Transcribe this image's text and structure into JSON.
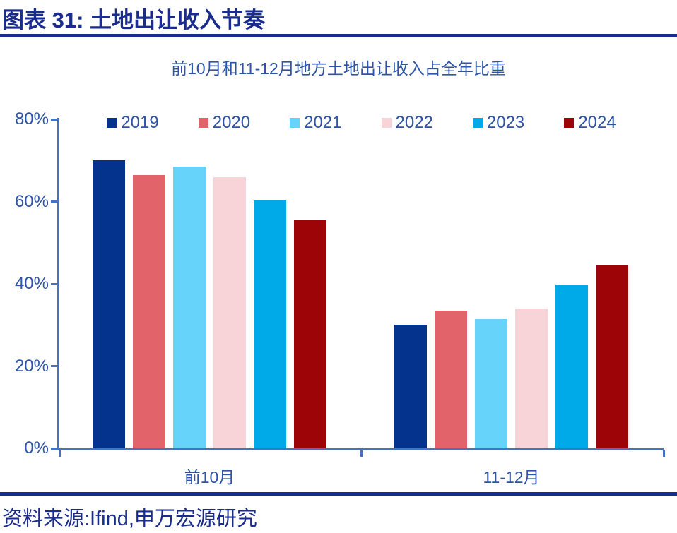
{
  "header": {
    "title": "图表 31:  土地出让收入节奏"
  },
  "footer": {
    "source": "资料来源:Ifind,申万宏源研究"
  },
  "colors": {
    "header_navy": "#1A2D8E",
    "axis_blue": "#4472C4",
    "label_blue": "#2E54A9"
  },
  "chart_data": {
    "type": "bar",
    "title": "前10月和11-12月地方土地出让收入占全年比重",
    "categories": [
      "前10月",
      "11-12月"
    ],
    "series": [
      {
        "name": "2019",
        "color": "#04338E",
        "values": [
          70.0,
          30.0
        ]
      },
      {
        "name": "2020",
        "color": "#E2636A",
        "values": [
          66.5,
          33.5
        ]
      },
      {
        "name": "2021",
        "color": "#66D3FA",
        "values": [
          68.5,
          31.5
        ]
      },
      {
        "name": "2022",
        "color": "#F8D3D7",
        "values": [
          66.0,
          34.0
        ]
      },
      {
        "name": "2023",
        "color": "#00A9E8",
        "values": [
          60.2,
          39.8
        ]
      },
      {
        "name": "2024",
        "color": "#9C0408",
        "values": [
          55.5,
          44.5
        ]
      }
    ],
    "ylabel": "",
    "xlabel": "",
    "ylim": [
      0,
      80
    ],
    "ytick_step": 20,
    "ytick_labels": [
      "80%",
      "60%",
      "40%",
      "20%",
      "0%"
    ],
    "legend_position": "top",
    "grid": false,
    "unit": "percent"
  }
}
